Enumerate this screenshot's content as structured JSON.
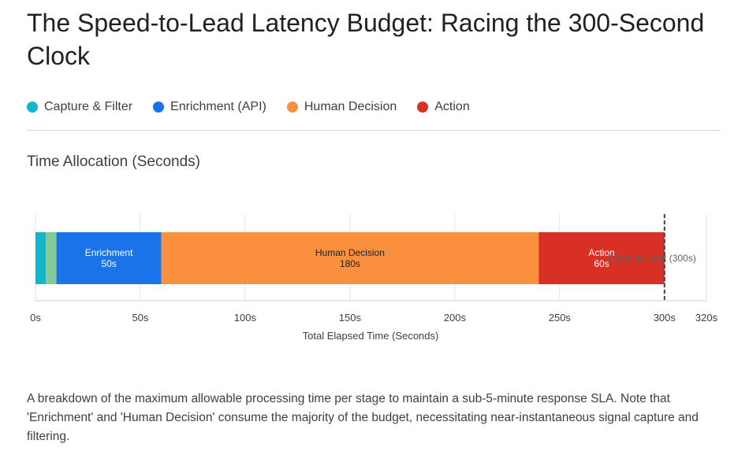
{
  "title": "The Speed-to-Lead Latency Budget: Racing the 300-Second Clock",
  "legend": [
    {
      "label": "Capture & Filter",
      "color": "#12b5cb"
    },
    {
      "label": "Enrichment (API)",
      "color": "#1a73e8"
    },
    {
      "label": "Human Decision",
      "color": "#fa903e"
    },
    {
      "label": "Action",
      "color": "#d93025"
    }
  ],
  "chart_title": "Time Allocation (Seconds)",
  "caption": "A breakdown of the maximum allowable processing time per stage to maintain a sub-5-minute response SLA. Note that 'Enrichment' and 'Human Decision' consume the majority of the budget, necessitating near-instantaneous signal capture and filtering.",
  "chart_data": {
    "type": "bar",
    "orientation": "horizontal-stacked",
    "xlabel": "Total Elapsed Time (Seconds)",
    "xlim": [
      0,
      320
    ],
    "x_ticks": [
      "0s",
      "50s",
      "100s",
      "150s",
      "200s",
      "250s",
      "300s",
      "320s"
    ],
    "x_tick_values": [
      0,
      50,
      100,
      150,
      200,
      250,
      300,
      320
    ],
    "grid": true,
    "segments": [
      {
        "label": "",
        "value_label": "",
        "start": 0,
        "value": 5,
        "color": "#12b5cb"
      },
      {
        "label": "",
        "value_label": "",
        "start": 5,
        "value": 5,
        "color": "#81c995"
      },
      {
        "label": "Enrichment",
        "value_label": "50s",
        "start": 10,
        "value": 50,
        "color": "#1a73e8"
      },
      {
        "label": "Human Decision",
        "value_label": "180s",
        "start": 60,
        "value": 180,
        "color": "#fa903e"
      },
      {
        "label": "Action",
        "value_label": "60s",
        "start": 240,
        "value": 60,
        "color": "#d93025"
      }
    ],
    "limit": {
      "value": 300,
      "label": "5 Minute Limit (300s)"
    }
  }
}
